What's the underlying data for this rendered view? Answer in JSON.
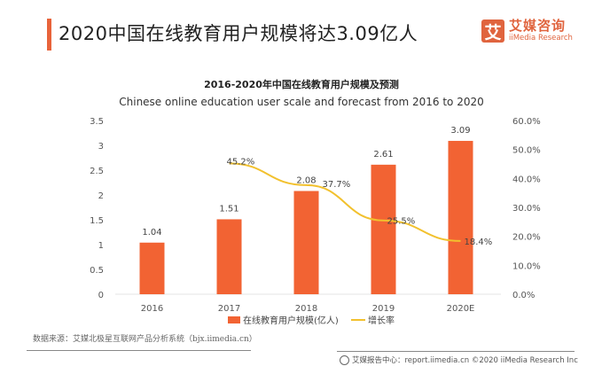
{
  "header": {
    "title": "2020中国在线教育用户规模将达3.09亿人",
    "accent_color": "#e8633a"
  },
  "logo": {
    "mark": "艾",
    "name_cn": "艾媒咨询",
    "name_en": "iiMedia Research",
    "color": "#e0643e"
  },
  "chart_data": {
    "type": "bar+line",
    "title": "2016-2020年中国在线教育用户规模及预测",
    "subtitle": "Chinese online education user scale and forecast from 2016 to 2020",
    "categories": [
      "2016",
      "2017",
      "2018",
      "2019",
      "2020E"
    ],
    "series": [
      {
        "name": "在线教育用户规模(亿人)",
        "type": "bar",
        "axis": "left",
        "color": "#f26333",
        "values": [
          1.04,
          1.51,
          2.08,
          2.61,
          3.09
        ],
        "labels": [
          "1.04",
          "1.51",
          "2.08",
          "2.61",
          "3.09"
        ]
      },
      {
        "name": "增长率",
        "type": "line",
        "axis": "right",
        "color": "#f2c12e",
        "values": [
          null,
          45.2,
          37.7,
          25.5,
          18.4
        ],
        "labels": [
          "",
          "45.2%",
          "37.7%",
          "25.5%",
          "18.4%"
        ]
      }
    ],
    "y_left": {
      "min": 0,
      "max": 3.5,
      "ticks": [
        "0",
        "0.5",
        "1",
        "1.5",
        "2",
        "2.5",
        "3",
        "3.5"
      ]
    },
    "y_right": {
      "min": 0,
      "max": 60,
      "ticks": [
        "0.0%",
        "10.0%",
        "20.0%",
        "30.0%",
        "40.0%",
        "50.0%",
        "60.0%"
      ]
    },
    "grid": false,
    "legend": "bottom"
  },
  "source": {
    "text": "数据来源：艾媒北极星互联网产品分析系统（bjx.iimedia.cn）"
  },
  "footer": {
    "icon": "globe-icon",
    "text": "艾媒报告中心：report.iimedia.cn  ©2020 iiMedia Research  Inc"
  }
}
